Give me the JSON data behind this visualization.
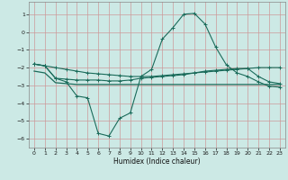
{
  "background_color": "#cce9e5",
  "grid_color": "#cc9999",
  "line_color": "#1a6b5a",
  "x_label": "Humidex (Indice chaleur)",
  "x_ticks": [
    0,
    1,
    2,
    3,
    4,
    5,
    6,
    7,
    8,
    9,
    10,
    11,
    12,
    13,
    14,
    15,
    16,
    17,
    18,
    19,
    20,
    21,
    22,
    23
  ],
  "y_ticks": [
    -6,
    -5,
    -4,
    -3,
    -2,
    -1,
    0,
    1
  ],
  "xlim": [
    -0.5,
    23.5
  ],
  "ylim": [
    -6.5,
    1.7
  ],
  "curve1_x": [
    0,
    1,
    2,
    3,
    4,
    5,
    6,
    7,
    8,
    9,
    10,
    11,
    12,
    13,
    14,
    15,
    16,
    17,
    18,
    19,
    20,
    21,
    22,
    23
  ],
  "curve1_y": [
    -1.8,
    -1.9,
    -2.0,
    -2.1,
    -2.2,
    -2.3,
    -2.35,
    -2.4,
    -2.45,
    -2.5,
    -2.5,
    -2.5,
    -2.45,
    -2.4,
    -2.35,
    -2.3,
    -2.25,
    -2.2,
    -2.15,
    -2.1,
    -2.05,
    -2.0,
    -2.0,
    -2.0
  ],
  "curve2_x": [
    0,
    1,
    2,
    3,
    4,
    5,
    6,
    7,
    8,
    9,
    10,
    11,
    12,
    13,
    14,
    15,
    16,
    17,
    18,
    19,
    20,
    21,
    22,
    23
  ],
  "curve2_y": [
    -1.8,
    -1.9,
    -2.6,
    -2.65,
    -2.7,
    -2.7,
    -2.7,
    -2.75,
    -2.75,
    -2.7,
    -2.6,
    -2.55,
    -2.5,
    -2.45,
    -2.4,
    -2.3,
    -2.2,
    -2.15,
    -2.1,
    -2.05,
    -2.05,
    -2.5,
    -2.8,
    -2.9
  ],
  "curve3_x": [
    0,
    1,
    2,
    3,
    4,
    5,
    6,
    7,
    8,
    9,
    10,
    11,
    12,
    13,
    14,
    15,
    16,
    17,
    18,
    19,
    20,
    21,
    22,
    23
  ],
  "curve3_y": [
    -1.8,
    -1.9,
    -2.6,
    -2.8,
    -3.6,
    -3.7,
    -5.7,
    -5.85,
    -4.85,
    -4.55,
    -2.5,
    -2.1,
    -0.4,
    0.25,
    1.0,
    1.05,
    0.45,
    -0.85,
    -1.85,
    -2.3,
    -2.5,
    -2.8,
    -3.05,
    -3.1
  ],
  "curve4_x": [
    0,
    1,
    2,
    3,
    4,
    5,
    6,
    7,
    8,
    9,
    10,
    11,
    12,
    13,
    14,
    15,
    16,
    17,
    18,
    19,
    20,
    21,
    22,
    23
  ],
  "curve4_y": [
    -2.2,
    -2.3,
    -2.85,
    -2.9,
    -2.95,
    -2.95,
    -2.95,
    -2.95,
    -2.95,
    -2.95,
    -2.95,
    -2.95,
    -2.95,
    -2.95,
    -2.95,
    -2.95,
    -2.95,
    -2.95,
    -2.95,
    -2.95,
    -2.95,
    -2.95,
    -2.95,
    -2.95
  ]
}
